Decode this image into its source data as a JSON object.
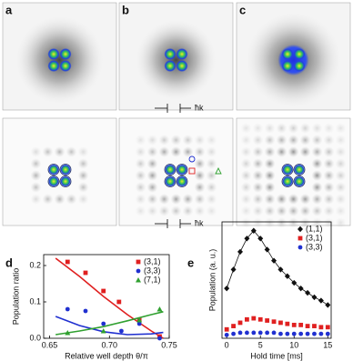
{
  "panels": {
    "labels": [
      "a",
      "b",
      "c",
      "d",
      "e"
    ],
    "hbar_k": "ħk"
  },
  "chart_data": [
    {
      "type": "scatter",
      "x_label": "Relative well depth  θ/π",
      "y_label": "Population ratio",
      "xlim": [
        0.645,
        0.75
      ],
      "ylim": [
        0,
        0.23
      ],
      "xticks": [
        0.65,
        {
          "value": 0.7,
          "label": "0.70"
        },
        0.75
      ],
      "yticks": [
        {
          "value": 0,
          "label": "0.0"
        },
        0.1,
        0.2
      ],
      "legend": "upper right",
      "series": [
        {
          "name": "(3,1)",
          "color": "#e02020",
          "marker": "square",
          "x": [
            0.665,
            0.68,
            0.695,
            0.708,
            0.725,
            0.742
          ],
          "values": [
            0.21,
            0.18,
            0.13,
            0.1,
            0.05,
            0.005
          ],
          "fit_x": [
            0.655,
            0.675,
            0.695,
            0.715,
            0.735,
            0.745
          ],
          "fit_values": [
            0.22,
            0.17,
            0.115,
            0.065,
            0.02,
            0.0
          ]
        },
        {
          "name": "(3,3)",
          "color": "#2030d0",
          "marker": "circle",
          "x": [
            0.665,
            0.68,
            0.695,
            0.71,
            0.725,
            0.742
          ],
          "values": [
            0.08,
            0.075,
            0.04,
            0.02,
            0.04,
            0.0
          ],
          "fit_x": [
            0.655,
            0.675,
            0.695,
            0.715,
            0.735,
            0.745
          ],
          "fit_values": [
            0.06,
            0.035,
            0.018,
            0.01,
            0.012,
            0.016
          ]
        },
        {
          "name": "(7,1)",
          "color": "#30a030",
          "marker": "triangle",
          "x": [
            0.665,
            0.695,
            0.725,
            0.742
          ],
          "values": [
            0.015,
            0.02,
            0.05,
            0.08
          ],
          "fit_x": [
            0.655,
            0.675,
            0.695,
            0.715,
            0.735,
            0.745
          ],
          "fit_values": [
            0.01,
            0.02,
            0.032,
            0.048,
            0.065,
            0.073
          ]
        }
      ]
    },
    {
      "type": "scatter",
      "x_label": "Hold time [ms]",
      "y_label": "Population (a. u.)",
      "xlim": [
        -0.7,
        15.5
      ],
      "ylim": [
        0,
        1.05
      ],
      "xticks": [
        0,
        5,
        10,
        15
      ],
      "legend": "upper right",
      "series": [
        {
          "name": "(1,1)",
          "color": "#111111",
          "marker": "diamond",
          "connect": true,
          "x": [
            0,
            1,
            2,
            3,
            4,
            5,
            6,
            7,
            8,
            9,
            10,
            11,
            12,
            13,
            14,
            15
          ],
          "values": [
            0.45,
            0.62,
            0.78,
            0.9,
            0.97,
            0.9,
            0.8,
            0.7,
            0.62,
            0.56,
            0.5,
            0.45,
            0.41,
            0.37,
            0.34,
            0.3
          ]
        },
        {
          "name": "(3,1)",
          "color": "#e02020",
          "marker": "square",
          "x": [
            0,
            1,
            2,
            3,
            4,
            5,
            6,
            7,
            8,
            9,
            10,
            11,
            12,
            13,
            14,
            15
          ],
          "values": [
            0.08,
            0.11,
            0.14,
            0.17,
            0.18,
            0.17,
            0.16,
            0.15,
            0.14,
            0.13,
            0.12,
            0.12,
            0.11,
            0.11,
            0.1,
            0.1
          ]
        },
        {
          "name": "(3,3)",
          "color": "#2030d0",
          "marker": "circle",
          "x": [
            0,
            1,
            2,
            3,
            4,
            5,
            6,
            7,
            8,
            9,
            10,
            11,
            12,
            13,
            14,
            15
          ],
          "values": [
            0.03,
            0.04,
            0.05,
            0.05,
            0.05,
            0.05,
            0.05,
            0.05,
            0.04,
            0.04,
            0.04,
            0.04,
            0.04,
            0.04,
            0.04,
            0.04
          ]
        }
      ]
    }
  ]
}
